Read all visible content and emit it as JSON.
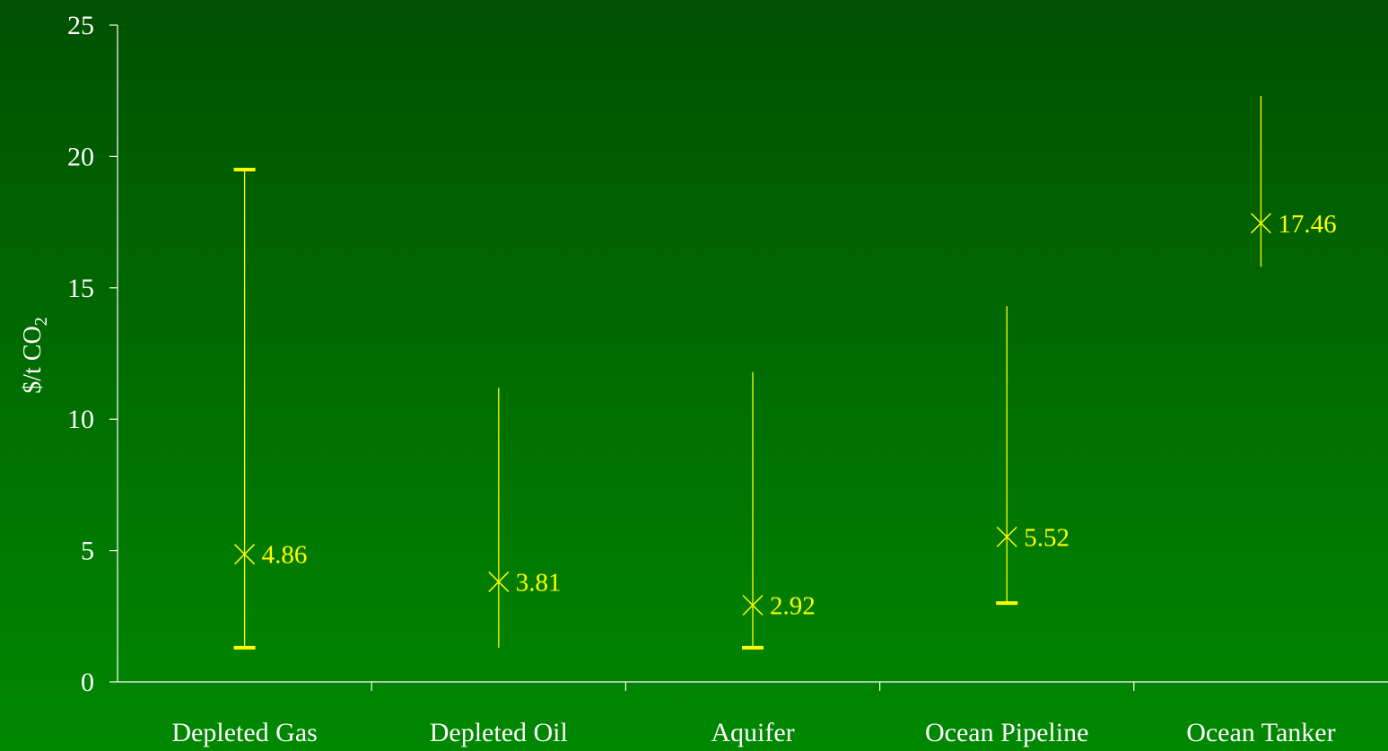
{
  "chart_data": {
    "type": "scatter",
    "ylabel": "$/t CO",
    "ylabel_subscript": "2",
    "ylim": [
      0,
      25
    ],
    "yticks": [
      "0",
      "5",
      "10",
      "15",
      "20",
      "25"
    ],
    "grid": false,
    "categories": [
      "Depleted Gas",
      "Depleted Oil",
      "Aquifer",
      "Ocean Pipeline",
      "Ocean Tanker"
    ],
    "values": [
      4.86,
      3.81,
      2.92,
      5.52,
      17.46
    ],
    "value_labels": [
      "4.86",
      "3.81",
      "2.92",
      "5.52",
      "17.46"
    ],
    "error_low": [
      1.3,
      1.3,
      1.3,
      3.0,
      15.8
    ],
    "error_high": [
      19.5,
      11.2,
      11.8,
      14.3,
      22.3
    ],
    "cap_low": [
      true,
      false,
      true,
      true,
      false
    ],
    "cap_high": [
      true,
      false,
      false,
      false,
      false
    ],
    "colors": {
      "marker": "#ffff00",
      "axis": "#ffffff",
      "background_top": "#005100",
      "background_bottom": "#008800"
    },
    "marker_symbol": "x-cross"
  }
}
